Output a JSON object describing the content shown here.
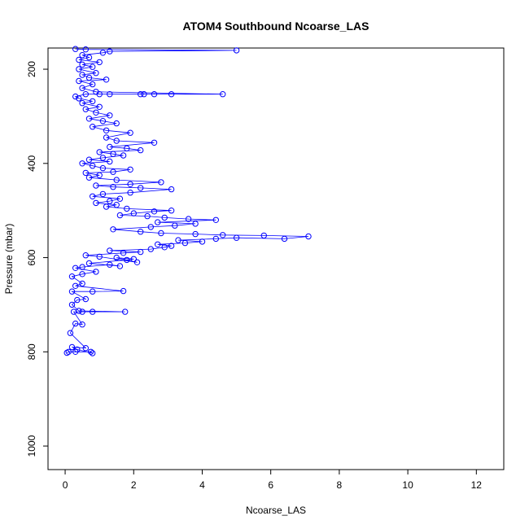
{
  "chart_data": {
    "type": "scatter",
    "title": "ATOM4 Southbound Ncoarse_LAS",
    "xlabel": "Ncoarse_LAS",
    "ylabel": "Pressure (mbar)",
    "xlim": [
      -0.5,
      12.8
    ],
    "ylim": [
      1050,
      155
    ],
    "y_reversed": true,
    "x_ticks": [
      0,
      2,
      4,
      6,
      8,
      10,
      12
    ],
    "y_ticks": [
      200,
      400,
      600,
      800,
      1000
    ],
    "x_tick_labels": [
      "0",
      "2",
      "4",
      "6",
      "8",
      "10",
      "12"
    ],
    "y_tick_labels": [
      "200",
      "400",
      "600",
      "800",
      "1000"
    ],
    "grid": false,
    "legend": "none",
    "series_color": "#0000ff",
    "marker": "open-circle",
    "connected": true,
    "series": [
      {
        "points": [
          [
            0.05,
            802
          ],
          [
            0.1,
            800
          ],
          [
            0.3,
            800
          ],
          [
            0.75,
            800
          ],
          [
            0.8,
            803
          ],
          [
            0.35,
            795
          ],
          [
            0.2,
            790
          ],
          [
            0.6,
            792
          ],
          [
            0.15,
            760
          ],
          [
            0.3,
            740
          ],
          [
            0.5,
            742
          ],
          [
            0.25,
            715
          ],
          [
            0.5,
            715
          ],
          [
            0.8,
            715
          ],
          [
            1.75,
            715
          ],
          [
            0.4,
            713
          ],
          [
            0.2,
            700
          ],
          [
            0.35,
            690
          ],
          [
            0.6,
            688
          ],
          [
            0.2,
            672
          ],
          [
            0.8,
            672
          ],
          [
            1.7,
            671
          ],
          [
            0.3,
            660
          ],
          [
            0.5,
            655
          ],
          [
            0.2,
            640
          ],
          [
            0.5,
            635
          ],
          [
            0.9,
            630
          ],
          [
            0.3,
            622
          ],
          [
            0.5,
            620
          ],
          [
            1.3,
            615
          ],
          [
            1.6,
            618
          ],
          [
            0.7,
            612
          ],
          [
            1.8,
            605
          ],
          [
            2.0,
            603
          ],
          [
            1.5,
            600
          ],
          [
            2.1,
            610
          ],
          [
            1.0,
            598
          ],
          [
            0.6,
            595
          ],
          [
            1.7,
            590
          ],
          [
            2.2,
            588
          ],
          [
            1.3,
            585
          ],
          [
            2.5,
            582
          ],
          [
            2.9,
            578
          ],
          [
            3.1,
            575
          ],
          [
            2.7,
            572
          ],
          [
            3.5,
            569
          ],
          [
            4.0,
            566
          ],
          [
            3.3,
            563
          ],
          [
            4.4,
            560
          ],
          [
            5.0,
            558
          ],
          [
            6.4,
            560
          ],
          [
            7.1,
            555
          ],
          [
            5.8,
            553
          ],
          [
            4.6,
            552
          ],
          [
            3.8,
            550
          ],
          [
            2.8,
            548
          ],
          [
            2.2,
            545
          ],
          [
            1.4,
            540
          ],
          [
            2.5,
            535
          ],
          [
            3.2,
            532
          ],
          [
            3.8,
            528
          ],
          [
            2.7,
            525
          ],
          [
            4.4,
            520
          ],
          [
            3.6,
            518
          ],
          [
            2.9,
            515
          ],
          [
            2.4,
            512
          ],
          [
            1.6,
            510
          ],
          [
            2.0,
            506
          ],
          [
            2.6,
            502
          ],
          [
            3.1,
            500
          ],
          [
            1.8,
            496
          ],
          [
            1.2,
            492
          ],
          [
            1.5,
            488
          ],
          [
            0.9,
            484
          ],
          [
            1.3,
            480
          ],
          [
            1.6,
            475
          ],
          [
            0.8,
            470
          ],
          [
            1.1,
            465
          ],
          [
            1.9,
            462
          ],
          [
            3.1,
            455
          ],
          [
            2.2,
            452
          ],
          [
            1.4,
            450
          ],
          [
            0.9,
            447
          ],
          [
            1.9,
            444
          ],
          [
            2.8,
            440
          ],
          [
            1.5,
            435
          ],
          [
            0.7,
            430
          ],
          [
            1.0,
            425
          ],
          [
            0.6,
            420
          ],
          [
            1.4,
            418
          ],
          [
            1.9,
            413
          ],
          [
            1.1,
            410
          ],
          [
            0.8,
            405
          ],
          [
            0.5,
            400
          ],
          [
            1.3,
            396
          ],
          [
            0.7,
            392
          ],
          [
            1.1,
            388
          ],
          [
            1.7,
            383
          ],
          [
            1.4,
            380
          ],
          [
            1.0,
            376
          ],
          [
            2.2,
            372
          ],
          [
            1.8,
            368
          ],
          [
            1.3,
            365
          ],
          [
            2.6,
            356
          ],
          [
            1.5,
            352
          ],
          [
            1.2,
            345
          ],
          [
            1.9,
            335
          ],
          [
            1.2,
            330
          ],
          [
            0.8,
            322
          ],
          [
            1.5,
            315
          ],
          [
            1.1,
            310
          ],
          [
            0.7,
            305
          ],
          [
            1.3,
            298
          ],
          [
            0.9,
            292
          ],
          [
            0.6,
            285
          ],
          [
            1.0,
            280
          ],
          [
            0.5,
            272
          ],
          [
            0.8,
            268
          ],
          [
            0.4,
            262
          ],
          [
            0.3,
            258
          ],
          [
            0.6,
            253
          ],
          [
            1.0,
            253
          ],
          [
            1.3,
            253
          ],
          [
            2.2,
            253
          ],
          [
            2.3,
            253
          ],
          [
            2.6,
            253
          ],
          [
            3.1,
            253
          ],
          [
            4.6,
            253
          ],
          [
            0.9,
            248
          ],
          [
            0.5,
            240
          ],
          [
            0.8,
            232
          ],
          [
            0.4,
            225
          ],
          [
            1.2,
            222
          ],
          [
            0.7,
            218
          ],
          [
            0.5,
            212
          ],
          [
            0.9,
            208
          ],
          [
            0.4,
            200
          ],
          [
            0.8,
            195
          ],
          [
            0.5,
            190
          ],
          [
            1.0,
            185
          ],
          [
            0.4,
            180
          ],
          [
            0.7,
            175
          ],
          [
            0.5,
            170
          ],
          [
            1.1,
            165
          ],
          [
            1.3,
            162
          ],
          [
            5.0,
            160
          ],
          [
            0.6,
            158
          ],
          [
            0.3,
            157
          ]
        ]
      }
    ]
  }
}
